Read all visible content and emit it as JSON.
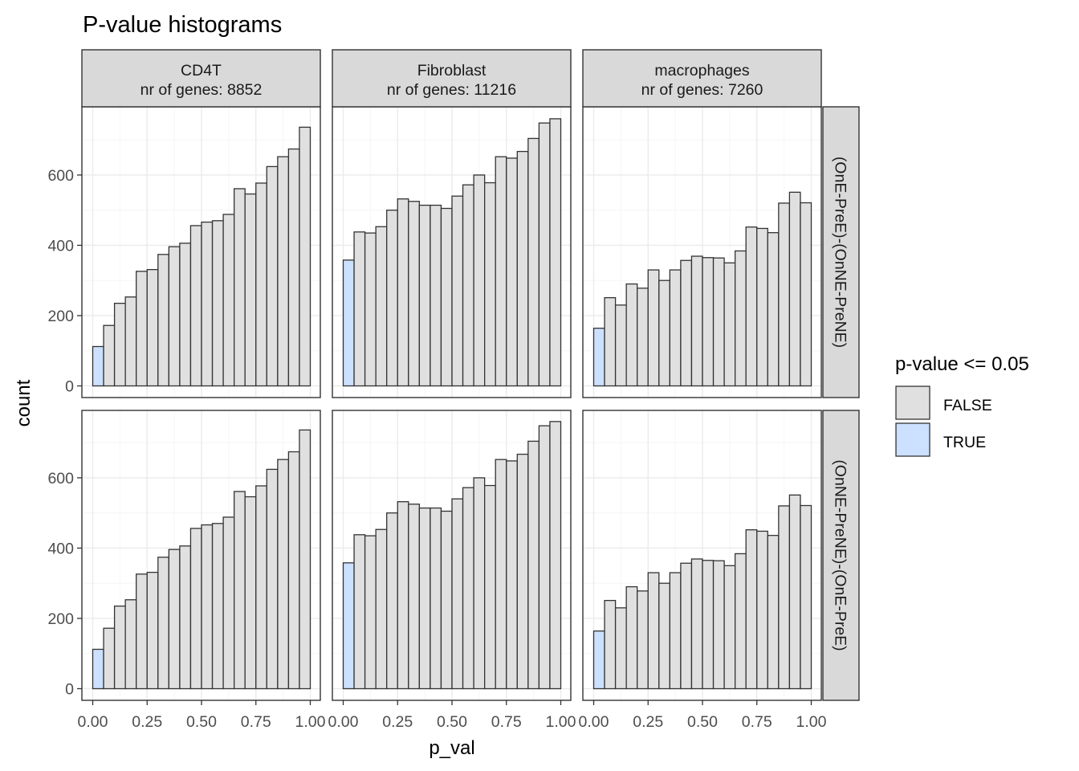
{
  "chart_data": {
    "type": "bar",
    "title": "P-value histograms",
    "xlabel": "p_val",
    "ylabel": "count",
    "xlim": [
      0,
      1
    ],
    "ylim": [
      0,
      760
    ],
    "x_ticks": [
      "0.00",
      "0.25",
      "0.50",
      "0.75",
      "1.00"
    ],
    "x_tick_values": [
      0,
      0.25,
      0.5,
      0.75,
      1.0
    ],
    "y_ticks": [
      "0",
      "200",
      "400",
      "600"
    ],
    "y_tick_values": [
      0,
      200,
      400,
      600
    ],
    "grid": true,
    "legend": {
      "title": "p-value <= 0.05",
      "position": "right",
      "entries": [
        {
          "label": "FALSE",
          "color": "#e0e0e0"
        },
        {
          "label": "TRUE",
          "color": "#cce0ff"
        }
      ]
    },
    "bin_centers": [
      0.025,
      0.075,
      0.125,
      0.175,
      0.225,
      0.275,
      0.325,
      0.375,
      0.425,
      0.475,
      0.525,
      0.575,
      0.625,
      0.675,
      0.725,
      0.775,
      0.825,
      0.875,
      0.925,
      0.975
    ],
    "columns": [
      {
        "label": "CD4T\nnr of genes: 8852"
      },
      {
        "label": "Fibroblast\nnr of genes: 11216"
      },
      {
        "label": "macrophages\nnr of genes: 7260"
      }
    ],
    "rows": [
      {
        "label": "(OnE-PreE)-(OnNE-PreNE)"
      },
      {
        "label": "(OnNE-PreNE)-(OnE-PreE)"
      }
    ],
    "panels": [
      {
        "column": "CD4T",
        "row": "(OnE-PreE)-(OnNE-PreNE)",
        "values": [
          112,
          172,
          235,
          253,
          326,
          331,
          374,
          396,
          406,
          456,
          466,
          470,
          488,
          561,
          546,
          577,
          624,
          652,
          674,
          736
        ]
      },
      {
        "column": "Fibroblast",
        "row": "(OnE-PreE)-(OnNE-PreNE)",
        "values": [
          358,
          438,
          435,
          453,
          500,
          532,
          525,
          514,
          514,
          505,
          540,
          572,
          600,
          578,
          652,
          648,
          667,
          704,
          748,
          760
        ]
      },
      {
        "column": "macrophages",
        "row": "(OnE-PreE)-(OnNE-PreNE)",
        "values": [
          164,
          251,
          230,
          290,
          278,
          330,
          300,
          330,
          357,
          369,
          365,
          364,
          350,
          384,
          452,
          448,
          436,
          520,
          551,
          521
        ]
      },
      {
        "column": "CD4T",
        "row": "(OnNE-PreNE)-(OnE-PreE)",
        "values": [
          112,
          172,
          235,
          253,
          326,
          331,
          374,
          396,
          406,
          456,
          466,
          470,
          488,
          561,
          546,
          577,
          624,
          652,
          674,
          736
        ]
      },
      {
        "column": "Fibroblast",
        "row": "(OnNE-PreNE)-(OnE-PreE)",
        "values": [
          358,
          438,
          435,
          453,
          500,
          532,
          525,
          514,
          514,
          505,
          540,
          572,
          600,
          578,
          652,
          648,
          667,
          704,
          748,
          760
        ]
      },
      {
        "column": "macrophages",
        "row": "(OnNE-PreNE)-(OnE-PreE)",
        "values": [
          164,
          251,
          230,
          290,
          278,
          330,
          300,
          330,
          357,
          369,
          365,
          364,
          350,
          384,
          452,
          448,
          436,
          520,
          551,
          521
        ]
      }
    ],
    "true_bins": [
      0
    ],
    "colors": {
      "false_fill": "#e0e0e0",
      "true_fill": "#cce0ff",
      "bar_stroke": "#333333",
      "strip_fill": "#d9d9d9",
      "grid_major": "#ebebeb",
      "grid_minor": "#f5f5f5"
    }
  }
}
